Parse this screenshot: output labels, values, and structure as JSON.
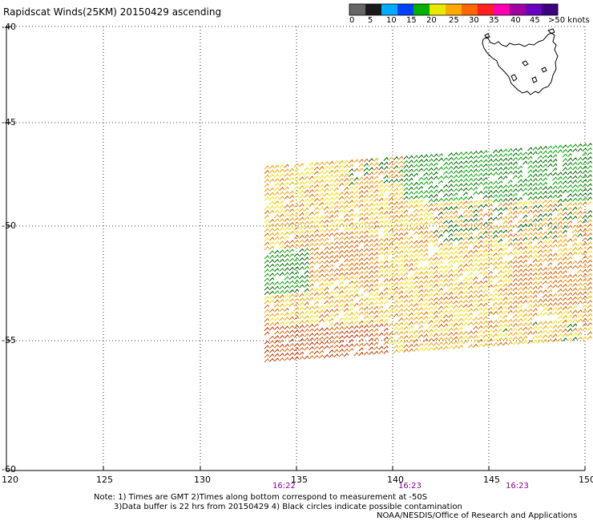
{
  "title": "Rapidscat Winds(25KM) 20150429 ascending",
  "legend": {
    "labels": [
      "0",
      "5",
      "10",
      "15",
      "20",
      "25",
      "30",
      "35",
      "40",
      "45",
      ">50 knots"
    ],
    "colors": [
      "#666666",
      "#1a1a1a",
      "#00aaff",
      "#0040ff",
      "#00b000",
      "#e8e800",
      "#ffaa00",
      "#ff6600",
      "#ff2020",
      "#ff00b0",
      "#a000a0",
      "#6a00c0",
      "#3a0080"
    ]
  },
  "axes": {
    "lat_labels": [
      "-40",
      "-45",
      "-50",
      "-55",
      "-60"
    ],
    "lon_labels": [
      "120",
      "125",
      "130",
      "135",
      "140",
      "145",
      "150"
    ]
  },
  "times": [
    "16:22",
    "16:23",
    "16:23"
  ],
  "notes": [
    "Note: 1) Times are GMT 2)Times along bottom correspond to measurement at -50S",
    "3)Data buffer is 22 hrs from 20150429 4) Black circles indicate possible contamination",
    "NOAA/NESDIS/Office of Research and Applications"
  ],
  "wind_colors": {
    "yellow": "#f0e000",
    "orange": "#e8a000",
    "darkorange": "#d06000",
    "red": "#b83000",
    "green": "#00a000",
    "darkgreen": "#006000"
  }
}
